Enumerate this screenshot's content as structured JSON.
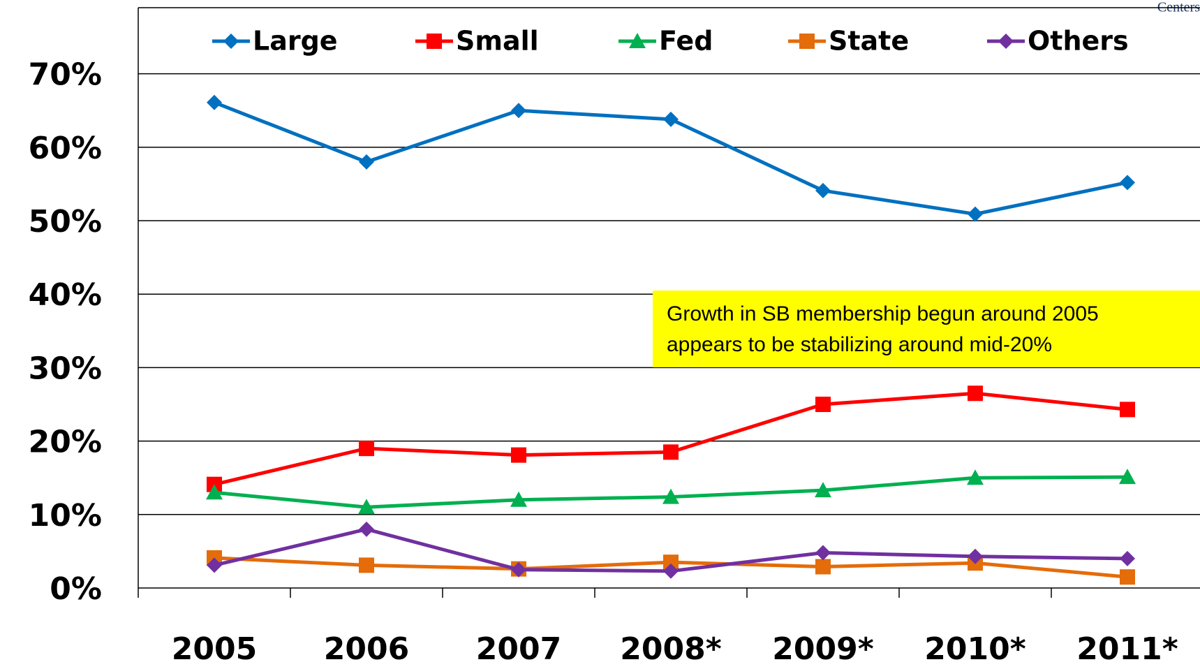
{
  "chart_data": {
    "type": "line",
    "header_note": "Centers",
    "categories": [
      "2005",
      "2006",
      "2007",
      "2008*",
      "2009*",
      "2010*",
      "2011*"
    ],
    "series": [
      {
        "name": "Large",
        "color": "#0070c0",
        "marker": "diamond",
        "values": [
          66.1,
          58,
          65,
          63.8,
          54.1,
          50.9,
          55.2
        ]
      },
      {
        "name": "Small",
        "color": "#ff0000",
        "marker": "square",
        "values": [
          14.1,
          19,
          18.1,
          18.5,
          25,
          26.5,
          24.3
        ]
      },
      {
        "name": "Fed",
        "color": "#00b050",
        "marker": "triangle",
        "values": [
          13,
          11,
          12,
          12.4,
          13.3,
          15,
          15.1
        ]
      },
      {
        "name": "State",
        "color": "#e46c0a",
        "marker": "square",
        "values": [
          4.1,
          3.1,
          2.6,
          3.5,
          2.9,
          3.4,
          1.5
        ]
      },
      {
        "name": "Others",
        "color": "#7030a0",
        "marker": "diamond",
        "values": [
          3.1,
          8,
          2.5,
          2.3,
          4.8,
          4.3,
          4.0
        ]
      }
    ],
    "ylim": [
      0,
      79
    ],
    "yticks": [
      {
        "value": 0,
        "label": "0%"
      },
      {
        "value": 10,
        "label": "10%"
      },
      {
        "value": 20,
        "label": "20%"
      },
      {
        "value": 30,
        "label": "30%"
      },
      {
        "value": 40,
        "label": "40%"
      },
      {
        "value": 50,
        "label": "50%"
      },
      {
        "value": 60,
        "label": "60%"
      },
      {
        "value": 70,
        "label": "70%"
      }
    ],
    "grid": true,
    "legend": "top",
    "annotation": {
      "lines": [
        "Growth in SB membership begun around 2005",
        "appears to be stabilizing around mid-20%"
      ],
      "background": "#ffff00"
    }
  }
}
